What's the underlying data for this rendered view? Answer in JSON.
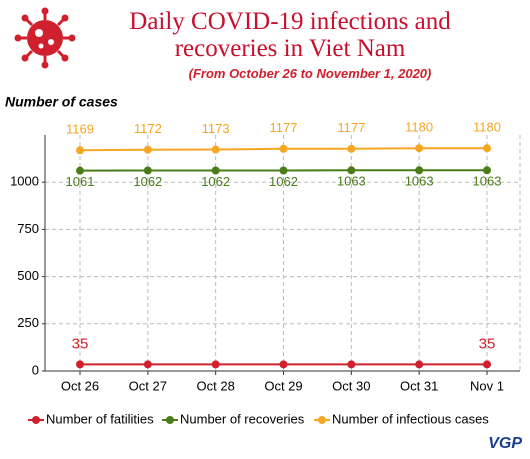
{
  "chart_data": {
    "type": "line",
    "title": "Daily COVID-19 infections and recoveries in Viet Nam",
    "subtitle": "(From October 26 to November 1, 2020)",
    "y_label": "Number of cases",
    "logo": "VGP",
    "categories": [
      "Oct 26",
      "Oct 27",
      "Oct 28",
      "Oct 29",
      "Oct 30",
      "Oct 31",
      "Nov 1"
    ],
    "series": [
      {
        "name": "Number of fatilities",
        "color": "#d0202e",
        "values": [
          35,
          35,
          35,
          35,
          35,
          35,
          35
        ],
        "value_labels": [
          "35",
          null,
          null,
          null,
          null,
          null,
          "35"
        ],
        "label_side": "above"
      },
      {
        "name": "Number of recoveries",
        "color": "#4a7c1a",
        "values": [
          1061,
          1062,
          1062,
          1062,
          1063,
          1063,
          1063
        ],
        "label_side": "below"
      },
      {
        "name": "Number of infectious cases",
        "color": "#f5a623",
        "values": [
          1169,
          1172,
          1173,
          1177,
          1177,
          1180,
          1180
        ],
        "label_side": "above"
      }
    ],
    "ylim": [
      0,
      1250
    ],
    "yticks": [
      0,
      250,
      500,
      750,
      1000
    ],
    "grid": true
  }
}
